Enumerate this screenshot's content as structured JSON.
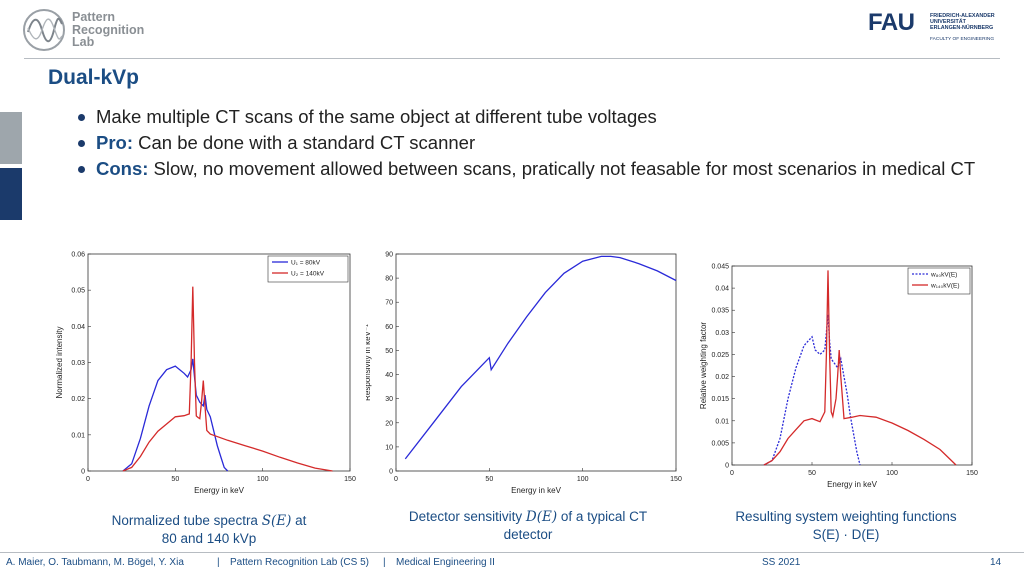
{
  "header": {
    "logo_lines": [
      "Pattern",
      "Recognition",
      "Lab"
    ],
    "fau_big": "FAU",
    "fau_small": [
      "FRIEDRICH-ALEXANDER",
      "UNIVERSITÄT",
      "ERLANGEN-NÜRNBERG"
    ],
    "fau_faculty": "FACULTY OF ENGINEERING"
  },
  "slide": {
    "title": "Dual-kVp",
    "bullets": [
      {
        "kw": "",
        "text": "Make multiple CT scans of the same object at different tube voltages"
      },
      {
        "kw": "Pro:",
        "text": " Can be done with a standard CT scanner"
      },
      {
        "kw": "Cons:",
        "text": " Slow, no movement allowed between scans, pratically not feasable for most scenarios in medical CT"
      }
    ]
  },
  "captions": {
    "c1_a": "Normalized tube spectra ",
    "c1_math": "S(E)",
    "c1_b": " at",
    "c1_line2": "80 and 140 kVp",
    "c2_a": "Detector sensitivity ",
    "c2_math": "D(E)",
    "c2_b": " of a typical CT",
    "c2_line2": "detector",
    "c3_line1": "Resulting system weighting functions",
    "c3_line2": "S(E) · D(E)"
  },
  "footer": {
    "authors": "A. Maier, O. Taubmann, M. Bögel, Y. Xia",
    "sep": "|",
    "course_lab": "Pattern Recognition Lab (CS 5)",
    "course": "Medical Engineering II",
    "term": "SS 2021",
    "page": "14"
  },
  "colors": {
    "blue": "#1b4d84",
    "navy": "#1b3a6b",
    "series_blue": "#2a2ad8",
    "series_red": "#d42a2a"
  },
  "chart_data": [
    {
      "type": "line",
      "xlabel": "Energy in keV",
      "ylabel": "Normalized intensity",
      "xlim": [
        0,
        150
      ],
      "ylim": [
        0,
        0.06
      ],
      "xticks": [
        "0",
        "50",
        "100",
        "150"
      ],
      "yticks": [
        "0",
        "0.01",
        "0.02",
        "0.03",
        "0.04",
        "0.05",
        "0.06"
      ],
      "legend_position": "top-right",
      "series": [
        {
          "name": "U₁ = 80kV",
          "color": "#2a2ad8",
          "x": [
            20,
            25,
            30,
            35,
            40,
            45,
            50,
            55,
            57,
            59,
            60,
            61,
            62,
            64,
            66,
            67,
            68,
            70,
            72,
            74,
            76,
            78,
            80
          ],
          "y": [
            0,
            0.002,
            0.009,
            0.018,
            0.025,
            0.028,
            0.029,
            0.027,
            0.026,
            0.028,
            0.031,
            0.026,
            0.021,
            0.019,
            0.018,
            0.021,
            0.017,
            0.015,
            0.011,
            0.007,
            0.004,
            0.001,
            0
          ]
        },
        {
          "name": "U₂ = 140kV",
          "color": "#d42a2a",
          "x": [
            20,
            25,
            30,
            35,
            40,
            45,
            50,
            55,
            58,
            59,
            60,
            61,
            62,
            63,
            64,
            65,
            66,
            67,
            68,
            70,
            80,
            90,
            100,
            110,
            120,
            130,
            140
          ],
          "y": [
            0,
            0.001,
            0.004,
            0.008,
            0.011,
            0.013,
            0.015,
            0.0153,
            0.0158,
            0.03,
            0.051,
            0.03,
            0.0152,
            0.0148,
            0.0145,
            0.019,
            0.025,
            0.018,
            0.0112,
            0.0102,
            0.0085,
            0.007,
            0.0055,
            0.0038,
            0.0022,
            0.0008,
            0
          ]
        }
      ]
    },
    {
      "type": "line",
      "xlabel": "Energy in keV",
      "ylabel": "Responsivity in keV⁻¹",
      "xlim": [
        0,
        150
      ],
      "ylim": [
        0,
        90
      ],
      "xticks": [
        "0",
        "50",
        "100",
        "150"
      ],
      "yticks": [
        "0",
        "10",
        "20",
        "30",
        "40",
        "50",
        "60",
        "70",
        "80",
        "90"
      ],
      "series": [
        {
          "name": "",
          "color": "#2a2ad8",
          "x": [
            5,
            20,
            35,
            45,
            50,
            51,
            60,
            70,
            80,
            90,
            100,
            110,
            115,
            120,
            130,
            140,
            150
          ],
          "y": [
            5,
            20,
            35,
            43,
            47,
            42,
            53,
            64,
            74,
            82,
            87,
            89,
            89,
            88.5,
            86,
            83,
            79
          ]
        }
      ]
    },
    {
      "type": "line",
      "xlabel": "Energy in keV",
      "ylabel": "Relative weighting factor",
      "xlim": [
        0,
        150
      ],
      "ylim": [
        0,
        0.045
      ],
      "xticks": [
        "0",
        "50",
        "100",
        "150"
      ],
      "yticks": [
        "0",
        "0.005",
        "0.01",
        "0.015",
        "0.02",
        "0.025",
        "0.03",
        "0.035",
        "0.04",
        "0.045"
      ],
      "legend_position": "top-right",
      "series": [
        {
          "name": "w₈₀kV(E)",
          "color": "#2a2ad8",
          "dashed": true,
          "x": [
            20,
            25,
            30,
            35,
            40,
            45,
            50,
            52,
            55,
            58,
            60,
            61,
            62,
            64,
            66,
            68,
            70,
            72,
            74,
            76,
            78,
            80
          ],
          "y": [
            0,
            0.001,
            0.006,
            0.015,
            0.022,
            0.027,
            0.029,
            0.026,
            0.025,
            0.026,
            0.034,
            0.028,
            0.024,
            0.023,
            0.022,
            0.024,
            0.02,
            0.016,
            0.011,
            0.007,
            0.003,
            0
          ]
        },
        {
          "name": "w₁₄₀kV(E)",
          "color": "#d42a2a",
          "x": [
            20,
            25,
            30,
            35,
            40,
            45,
            50,
            55,
            58,
            59,
            60,
            61,
            62,
            63,
            65,
            66,
            67,
            68,
            70,
            75,
            80,
            85,
            90,
            100,
            110,
            120,
            130,
            140
          ],
          "y": [
            0,
            0.001,
            0.003,
            0.006,
            0.008,
            0.01,
            0.0105,
            0.0098,
            0.012,
            0.025,
            0.044,
            0.025,
            0.012,
            0.011,
            0.015,
            0.02,
            0.026,
            0.02,
            0.0105,
            0.0108,
            0.0112,
            0.011,
            0.0108,
            0.0095,
            0.0078,
            0.0058,
            0.0035,
            0
          ]
        }
      ]
    }
  ]
}
